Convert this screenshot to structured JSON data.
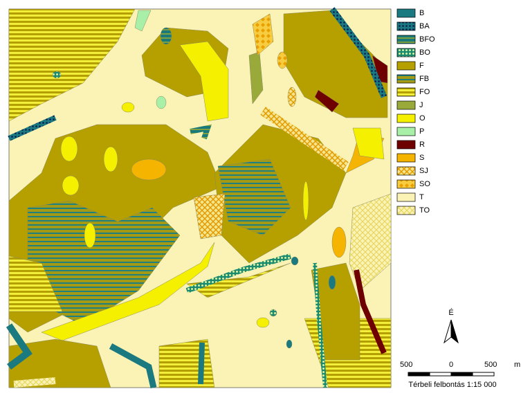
{
  "legend": {
    "items": [
      "B",
      "BA",
      "BFO",
      "BO",
      "F",
      "FB",
      "FO",
      "J",
      "O",
      "P",
      "R",
      "S",
      "SJ",
      "SO",
      "T",
      "TO"
    ]
  },
  "north_arrow": {
    "label": "É"
  },
  "scale_bar": {
    "labels": [
      "500",
      "0",
      "500",
      "m"
    ]
  },
  "caption": "Térbeli felbontás 1:15 000"
}
